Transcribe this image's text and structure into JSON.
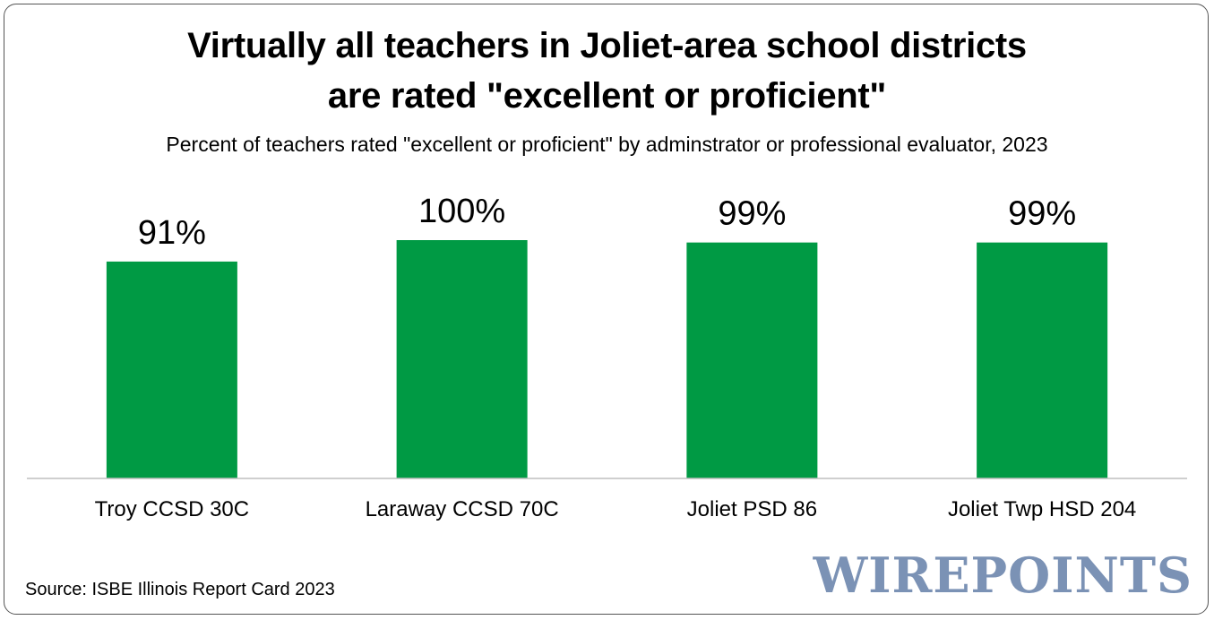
{
  "chart_data": {
    "type": "bar",
    "title_lines": [
      "Virtually all teachers in Joliet-area school districts",
      "are rated \"excellent or proficient\""
    ],
    "subtitle": "Percent of teachers rated \"excellent or proficient\" by adminstrator or professional evaluator, 2023",
    "categories": [
      "Troy CCSD 30C",
      "Laraway CCSD 70C",
      "Joliet PSD 86",
      "Joliet Twp HSD 204"
    ],
    "values": [
      91,
      100,
      99,
      99
    ],
    "data_labels": [
      "91%",
      "100%",
      "99%",
      "99%"
    ],
    "ylim": [
      0,
      100
    ],
    "grid": false,
    "legend": "none",
    "bar_color": "#009a44",
    "axis_color": "#bfbfbf"
  },
  "source": "Source: ISBE Illinois Report Card 2023",
  "logo_text": "WIREPOINTS"
}
